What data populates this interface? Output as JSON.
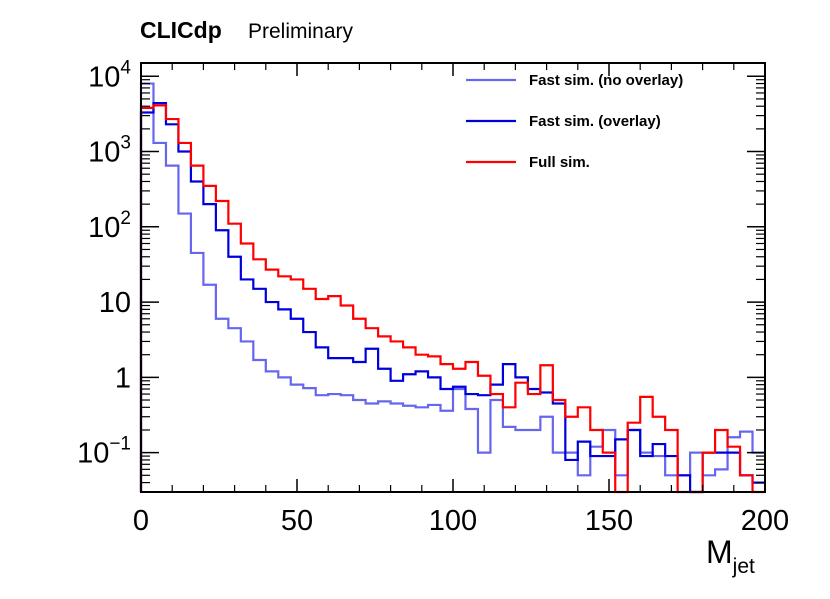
{
  "chart_data": {
    "type": "histogram",
    "title": "CLICdp",
    "subtitle": "Preliminary",
    "xlabel": "M",
    "xlabel_sub": "jet",
    "ylabel": "",
    "xlim": [
      0,
      200
    ],
    "ylim": [
      0.03,
      15000
    ],
    "yscale": "log",
    "bin_width": 4,
    "grid": false,
    "legend_position": "top-right",
    "x_ticks": [
      {
        "value": 0,
        "label": "0"
      },
      {
        "value": 50,
        "label": "50"
      },
      {
        "value": 100,
        "label": "100"
      },
      {
        "value": 150,
        "label": "150"
      },
      {
        "value": 200,
        "label": "200"
      }
    ],
    "y_ticks": [
      {
        "value": 0.1,
        "base": "10",
        "exp": "−1"
      },
      {
        "value": 1,
        "base": "1",
        "exp": ""
      },
      {
        "value": 10,
        "base": "10",
        "exp": ""
      },
      {
        "value": 100,
        "base": "10",
        "exp": "2"
      },
      {
        "value": 1000,
        "base": "10",
        "exp": "3"
      },
      {
        "value": 10000,
        "base": "10",
        "exp": "4"
      }
    ],
    "series": [
      {
        "name": "Fast sim. (no overlay)",
        "color": "#6666ee",
        "values": [
          8000,
          1300,
          650,
          150,
          45,
          17,
          6,
          4.5,
          3,
          1.7,
          1.2,
          1.0,
          0.8,
          0.72,
          0.58,
          0.6,
          0.58,
          0.5,
          0.45,
          0.48,
          0.45,
          0.42,
          0.4,
          0.43,
          0.36,
          0.7,
          0.38,
          0.1,
          0.5,
          0.22,
          0.2,
          0.2,
          0.3,
          0.1,
          0.1,
          0.05,
          0.12,
          0.2,
          0.05,
          0.2,
          0.1,
          0.09,
          0.05,
          0.05,
          0.1,
          0.05,
          0.06,
          0.16,
          0.19,
          0.1
        ]
      },
      {
        "name": "Fast sim. (overlay)",
        "color": "#0000dd",
        "values": [
          3300,
          4400,
          2300,
          1000,
          400,
          200,
          90,
          40,
          20,
          15,
          10,
          8,
          6,
          4,
          2.5,
          1.8,
          1.8,
          1.6,
          2.4,
          1.3,
          0.9,
          1.1,
          1.2,
          1.0,
          0.7,
          0.75,
          0.6,
          0.58,
          0.8,
          1.5,
          1.0,
          0.7,
          0.63,
          0.45,
          0.08,
          0.14,
          0.09,
          0.09,
          0.15,
          0.2,
          0.09,
          0.13,
          0.09,
          0.05,
          0.03,
          0.1,
          0.1,
          0.1,
          0.05,
          0.04
        ]
      },
      {
        "name": "Full sim.",
        "color": "#ff0000",
        "values": [
          3800,
          4100,
          2700,
          1300,
          650,
          350,
          220,
          110,
          60,
          37,
          27,
          22,
          20,
          15,
          11,
          12,
          9,
          6,
          4.5,
          3.5,
          3,
          2.5,
          2,
          1.9,
          1.5,
          1.3,
          1.6,
          1.05,
          0.6,
          0.4,
          0.85,
          0.6,
          1.45,
          0.5,
          0.3,
          0.4,
          0.2,
          0.1,
          0.03,
          0.25,
          0.55,
          0.3,
          0.2,
          0.03,
          0.03,
          0.1,
          0.2,
          0.12,
          0.05,
          0.03
        ]
      }
    ]
  }
}
